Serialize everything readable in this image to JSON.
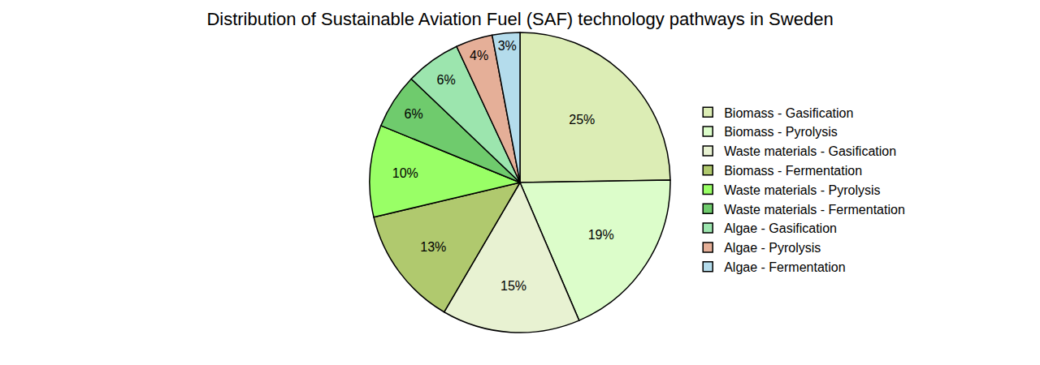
{
  "chart_data": {
    "type": "pie",
    "title": "Distribution of Sustainable Aviation Fuel (SAF) technology pathways in Sweden",
    "categories": [
      "Biomass - Gasification",
      "Biomass - Pyrolysis",
      "Waste materials - Gasification",
      "Biomass - Fermentation",
      "Waste materials - Pyrolysis",
      "Waste materials - Fermentation",
      "Algae - Gasification",
      "Algae - Pyrolysis",
      "Algae - Fermentation"
    ],
    "values": [
      25,
      19,
      15,
      13,
      10,
      6,
      6,
      4,
      3
    ],
    "value_labels": [
      "25%",
      "19%",
      "15%",
      "13%",
      "10%",
      "6%",
      "6%",
      "4%",
      "3%"
    ],
    "colors": [
      "#dcedb5",
      "#dcfdca",
      "#e8f2d2",
      "#b0c96e",
      "#99ff66",
      "#6fcb6d",
      "#9ce5ae",
      "#e5af98",
      "#b4dcec"
    ],
    "data_labels": true,
    "legend": "right"
  }
}
